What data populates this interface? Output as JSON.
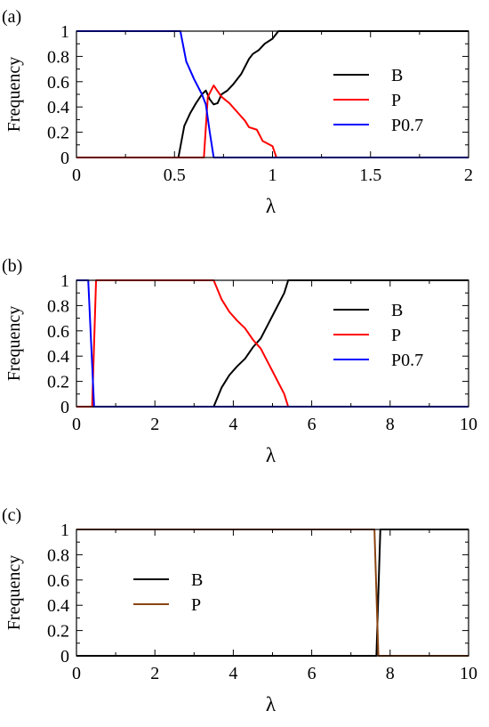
{
  "chart_data": [
    {
      "type": "line",
      "panel_label": "(a)",
      "xlabel": "λ",
      "ylabel": "Frequency",
      "xlim": [
        0,
        2
      ],
      "ylim": [
        0,
        1
      ],
      "xticks": [
        "0",
        "0.5",
        "1",
        "1.5",
        "2"
      ],
      "yticks": [
        "0",
        "0.2",
        "0.4",
        "0.6",
        "0.8",
        "1"
      ],
      "legend_position": "center-right",
      "series": [
        {
          "name": "B",
          "color": "#000000",
          "points": [
            [
              0,
              0
            ],
            [
              0.52,
              0
            ],
            [
              0.55,
              0.25
            ],
            [
              0.58,
              0.35
            ],
            [
              0.61,
              0.43
            ],
            [
              0.64,
              0.5
            ],
            [
              0.66,
              0.53
            ],
            [
              0.68,
              0.46
            ],
            [
              0.7,
              0.42
            ],
            [
              0.72,
              0.43
            ],
            [
              0.74,
              0.5
            ],
            [
              0.77,
              0.53
            ],
            [
              0.8,
              0.58
            ],
            [
              0.84,
              0.66
            ],
            [
              0.88,
              0.78
            ],
            [
              0.9,
              0.82
            ],
            [
              0.93,
              0.85
            ],
            [
              0.96,
              0.9
            ],
            [
              1.0,
              0.94
            ],
            [
              1.03,
              1.0
            ],
            [
              2,
              1
            ]
          ]
        },
        {
          "name": "P",
          "color": "#ff0000",
          "points": [
            [
              0,
              0
            ],
            [
              0.65,
              0
            ],
            [
              0.67,
              0.48
            ],
            [
              0.7,
              0.57
            ],
            [
              0.74,
              0.48
            ],
            [
              0.78,
              0.43
            ],
            [
              0.82,
              0.36
            ],
            [
              0.86,
              0.29
            ],
            [
              0.88,
              0.24
            ],
            [
              0.92,
              0.22
            ],
            [
              0.95,
              0.13
            ],
            [
              1.0,
              0.09
            ],
            [
              1.02,
              0
            ],
            [
              2,
              0
            ]
          ]
        },
        {
          "name": "P0.7",
          "color": "#0000ff",
          "points": [
            [
              0,
              1
            ],
            [
              0.53,
              1
            ],
            [
              0.56,
              0.76
            ],
            [
              0.6,
              0.62
            ],
            [
              0.64,
              0.5
            ],
            [
              0.66,
              0.42
            ],
            [
              0.68,
              0.2
            ],
            [
              0.7,
              0
            ],
            [
              2,
              0
            ]
          ]
        }
      ]
    },
    {
      "type": "line",
      "panel_label": "(b)",
      "xlabel": "λ",
      "ylabel": "Frequency",
      "xlim": [
        0,
        10
      ],
      "ylim": [
        0,
        1
      ],
      "xticks": [
        "0",
        "2",
        "4",
        "6",
        "8",
        "10"
      ],
      "yticks": [
        "0",
        "0.2",
        "0.4",
        "0.6",
        "0.8",
        "1"
      ],
      "legend_position": "center-right",
      "series": [
        {
          "name": "B",
          "color": "#000000",
          "points": [
            [
              0,
              0
            ],
            [
              3.5,
              0
            ],
            [
              3.7,
              0.15
            ],
            [
              3.9,
              0.25
            ],
            [
              4.1,
              0.32
            ],
            [
              4.3,
              0.38
            ],
            [
              4.5,
              0.47
            ],
            [
              4.7,
              0.54
            ],
            [
              4.9,
              0.66
            ],
            [
              5.1,
              0.78
            ],
            [
              5.3,
              0.9
            ],
            [
              5.4,
              1.0
            ],
            [
              10,
              1
            ]
          ]
        },
        {
          "name": "P",
          "color": "#ff0000",
          "points": [
            [
              0,
              0
            ],
            [
              0.4,
              0
            ],
            [
              0.5,
              1.0
            ],
            [
              3.5,
              1.0
            ],
            [
              3.7,
              0.85
            ],
            [
              3.9,
              0.75
            ],
            [
              4.1,
              0.68
            ],
            [
              4.3,
              0.62
            ],
            [
              4.5,
              0.53
            ],
            [
              4.7,
              0.46
            ],
            [
              4.9,
              0.34
            ],
            [
              5.1,
              0.22
            ],
            [
              5.3,
              0.1
            ],
            [
              5.4,
              0
            ],
            [
              10,
              0
            ]
          ]
        },
        {
          "name": "P0.7",
          "color": "#0000ff",
          "points": [
            [
              0,
              1
            ],
            [
              0.3,
              1
            ],
            [
              0.45,
              0
            ],
            [
              10,
              0
            ]
          ]
        }
      ]
    },
    {
      "type": "line",
      "panel_label": "(c)",
      "xlabel": "λ",
      "ylabel": "Frequency",
      "xlim": [
        0,
        10
      ],
      "ylim": [
        0,
        1
      ],
      "xticks": [
        "0",
        "2",
        "4",
        "6",
        "8",
        "10"
      ],
      "yticks": [
        "0",
        "0.2",
        "0.4",
        "0.6",
        "0.8",
        "1"
      ],
      "legend_position": "center-left",
      "series": [
        {
          "name": "B",
          "color": "#000000",
          "points": [
            [
              0,
              0
            ],
            [
              7.65,
              0
            ],
            [
              7.75,
              1.0
            ],
            [
              10,
              1
            ]
          ]
        },
        {
          "name": "P",
          "color": "#8b4513",
          "points": [
            [
              0,
              1
            ],
            [
              7.6,
              1
            ],
            [
              7.7,
              0
            ],
            [
              10,
              0
            ]
          ]
        }
      ]
    }
  ]
}
